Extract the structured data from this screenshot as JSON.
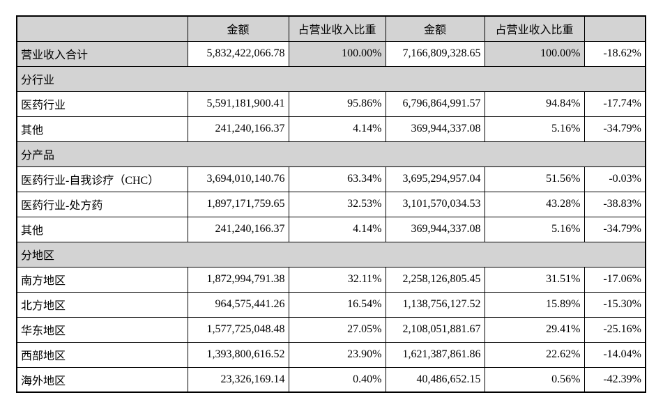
{
  "colors": {
    "shaded_bg": "#d3d3d3",
    "border": "#000000",
    "page_bg": "#ffffff"
  },
  "table": {
    "columns": [
      "",
      "金额",
      "占营业收入比重",
      "金额",
      "占营业收入比重",
      ""
    ],
    "rows": [
      {
        "type": "total",
        "label": "营业收入合计",
        "amount1": "5,832,422,066.78",
        "pct1": "100.00%",
        "amount2": "7,166,809,328.65",
        "pct2": "100.00%",
        "change": "-18.62%"
      },
      {
        "type": "section",
        "label": "分行业"
      },
      {
        "type": "data",
        "label": "医药行业",
        "amount1": "5,591,181,900.41",
        "pct1": "95.86%",
        "amount2": "6,796,864,991.57",
        "pct2": "94.84%",
        "change": "-17.74%"
      },
      {
        "type": "data",
        "label": "其他",
        "amount1": "241,240,166.37",
        "pct1": "4.14%",
        "amount2": "369,944,337.08",
        "pct2": "5.16%",
        "change": "-34.79%"
      },
      {
        "type": "section",
        "label": "分产品"
      },
      {
        "type": "data",
        "label": "医药行业-自我诊疗（CHC）",
        "amount1": "3,694,010,140.76",
        "pct1": "63.34%",
        "amount2": "3,695,294,957.04",
        "pct2": "51.56%",
        "change": "-0.03%"
      },
      {
        "type": "data",
        "label": "医药行业-处方药",
        "amount1": "1,897,171,759.65",
        "pct1": "32.53%",
        "amount2": "3,101,570,034.53",
        "pct2": "43.28%",
        "change": "-38.83%"
      },
      {
        "type": "data",
        "label": "其他",
        "amount1": "241,240,166.37",
        "pct1": "4.14%",
        "amount2": "369,944,337.08",
        "pct2": "5.16%",
        "change": "-34.79%"
      },
      {
        "type": "section",
        "label": "分地区"
      },
      {
        "type": "data",
        "label": "南方地区",
        "amount1": "1,872,994,791.38",
        "pct1": "32.11%",
        "amount2": "2,258,126,805.45",
        "pct2": "31.51%",
        "change": "-17.06%"
      },
      {
        "type": "data",
        "label": "北方地区",
        "amount1": "964,575,441.26",
        "pct1": "16.54%",
        "amount2": "1,138,756,127.52",
        "pct2": "15.89%",
        "change": "-15.30%"
      },
      {
        "type": "data",
        "label": "华东地区",
        "amount1": "1,577,725,048.48",
        "pct1": "27.05%",
        "amount2": "2,108,051,881.67",
        "pct2": "29.41%",
        "change": "-25.16%"
      },
      {
        "type": "data",
        "label": "西部地区",
        "amount1": "1,393,800,616.52",
        "pct1": "23.90%",
        "amount2": "1,621,387,861.86",
        "pct2": "22.62%",
        "change": "-14.04%"
      },
      {
        "type": "data",
        "label": "海外地区",
        "amount1": "23,326,169.14",
        "pct1": "0.40%",
        "amount2": "40,486,652.15",
        "pct2": "0.56%",
        "change": "-42.39%"
      }
    ]
  }
}
